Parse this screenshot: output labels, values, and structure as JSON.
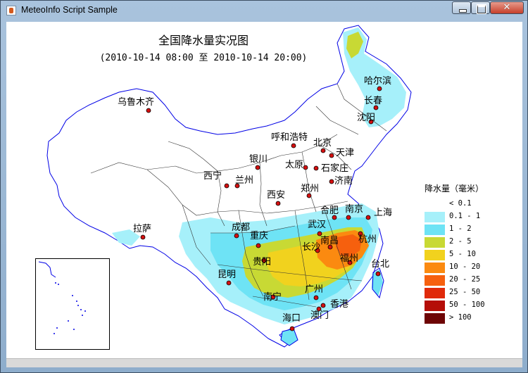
{
  "window": {
    "title": "MeteoInfo Script Sample",
    "minimize_icon": "minimize-icon",
    "maximize_icon": "maximize-icon",
    "close_icon": "close-icon"
  },
  "map": {
    "title": "全国降水量实况图",
    "subtitle": "(2010-10-14 08:00 至 2010-10-14 20:00)",
    "cities": [
      {
        "name": "哈尔滨"
      },
      {
        "name": "长春"
      },
      {
        "name": "沈阳"
      },
      {
        "name": "乌鲁木齐"
      },
      {
        "name": "呼和浩特"
      },
      {
        "name": "北京"
      },
      {
        "name": "天津"
      },
      {
        "name": "银川"
      },
      {
        "name": "太原"
      },
      {
        "name": "石家庄"
      },
      {
        "name": "西宁"
      },
      {
        "name": "兰州"
      },
      {
        "name": "济南"
      },
      {
        "name": "郑州"
      },
      {
        "name": "西安"
      },
      {
        "name": "合肥"
      },
      {
        "name": "南京"
      },
      {
        "name": "上海"
      },
      {
        "name": "拉萨"
      },
      {
        "name": "成都"
      },
      {
        "name": "武汉"
      },
      {
        "name": "重庆"
      },
      {
        "name": "长沙"
      },
      {
        "name": "南昌"
      },
      {
        "name": "杭州"
      },
      {
        "name": "贵阳"
      },
      {
        "name": "福州"
      },
      {
        "name": "台北"
      },
      {
        "name": "昆明"
      },
      {
        "name": "南宁"
      },
      {
        "name": "广州"
      },
      {
        "name": "香港"
      },
      {
        "name": "澳门"
      },
      {
        "name": "海口"
      }
    ]
  },
  "legend": {
    "title": "降水量（毫米）",
    "items": [
      {
        "label": "< 0.1",
        "color": "#ffffff"
      },
      {
        "label": "0.1 - 1",
        "color": "#a6f0fa"
      },
      {
        "label": "1 - 2",
        "color": "#6ee3f5"
      },
      {
        "label": "2 - 5",
        "color": "#c8d934"
      },
      {
        "label": "5 - 10",
        "color": "#f1d21e"
      },
      {
        "label": "10 - 20",
        "color": "#fb8a10"
      },
      {
        "label": "20 - 25",
        "color": "#f6600e"
      },
      {
        "label": "25 - 50",
        "color": "#e02a0a"
      },
      {
        "label": "50 - 100",
        "color": "#b50e08"
      },
      {
        "label": "> 100",
        "color": "#6e0505"
      }
    ]
  }
}
